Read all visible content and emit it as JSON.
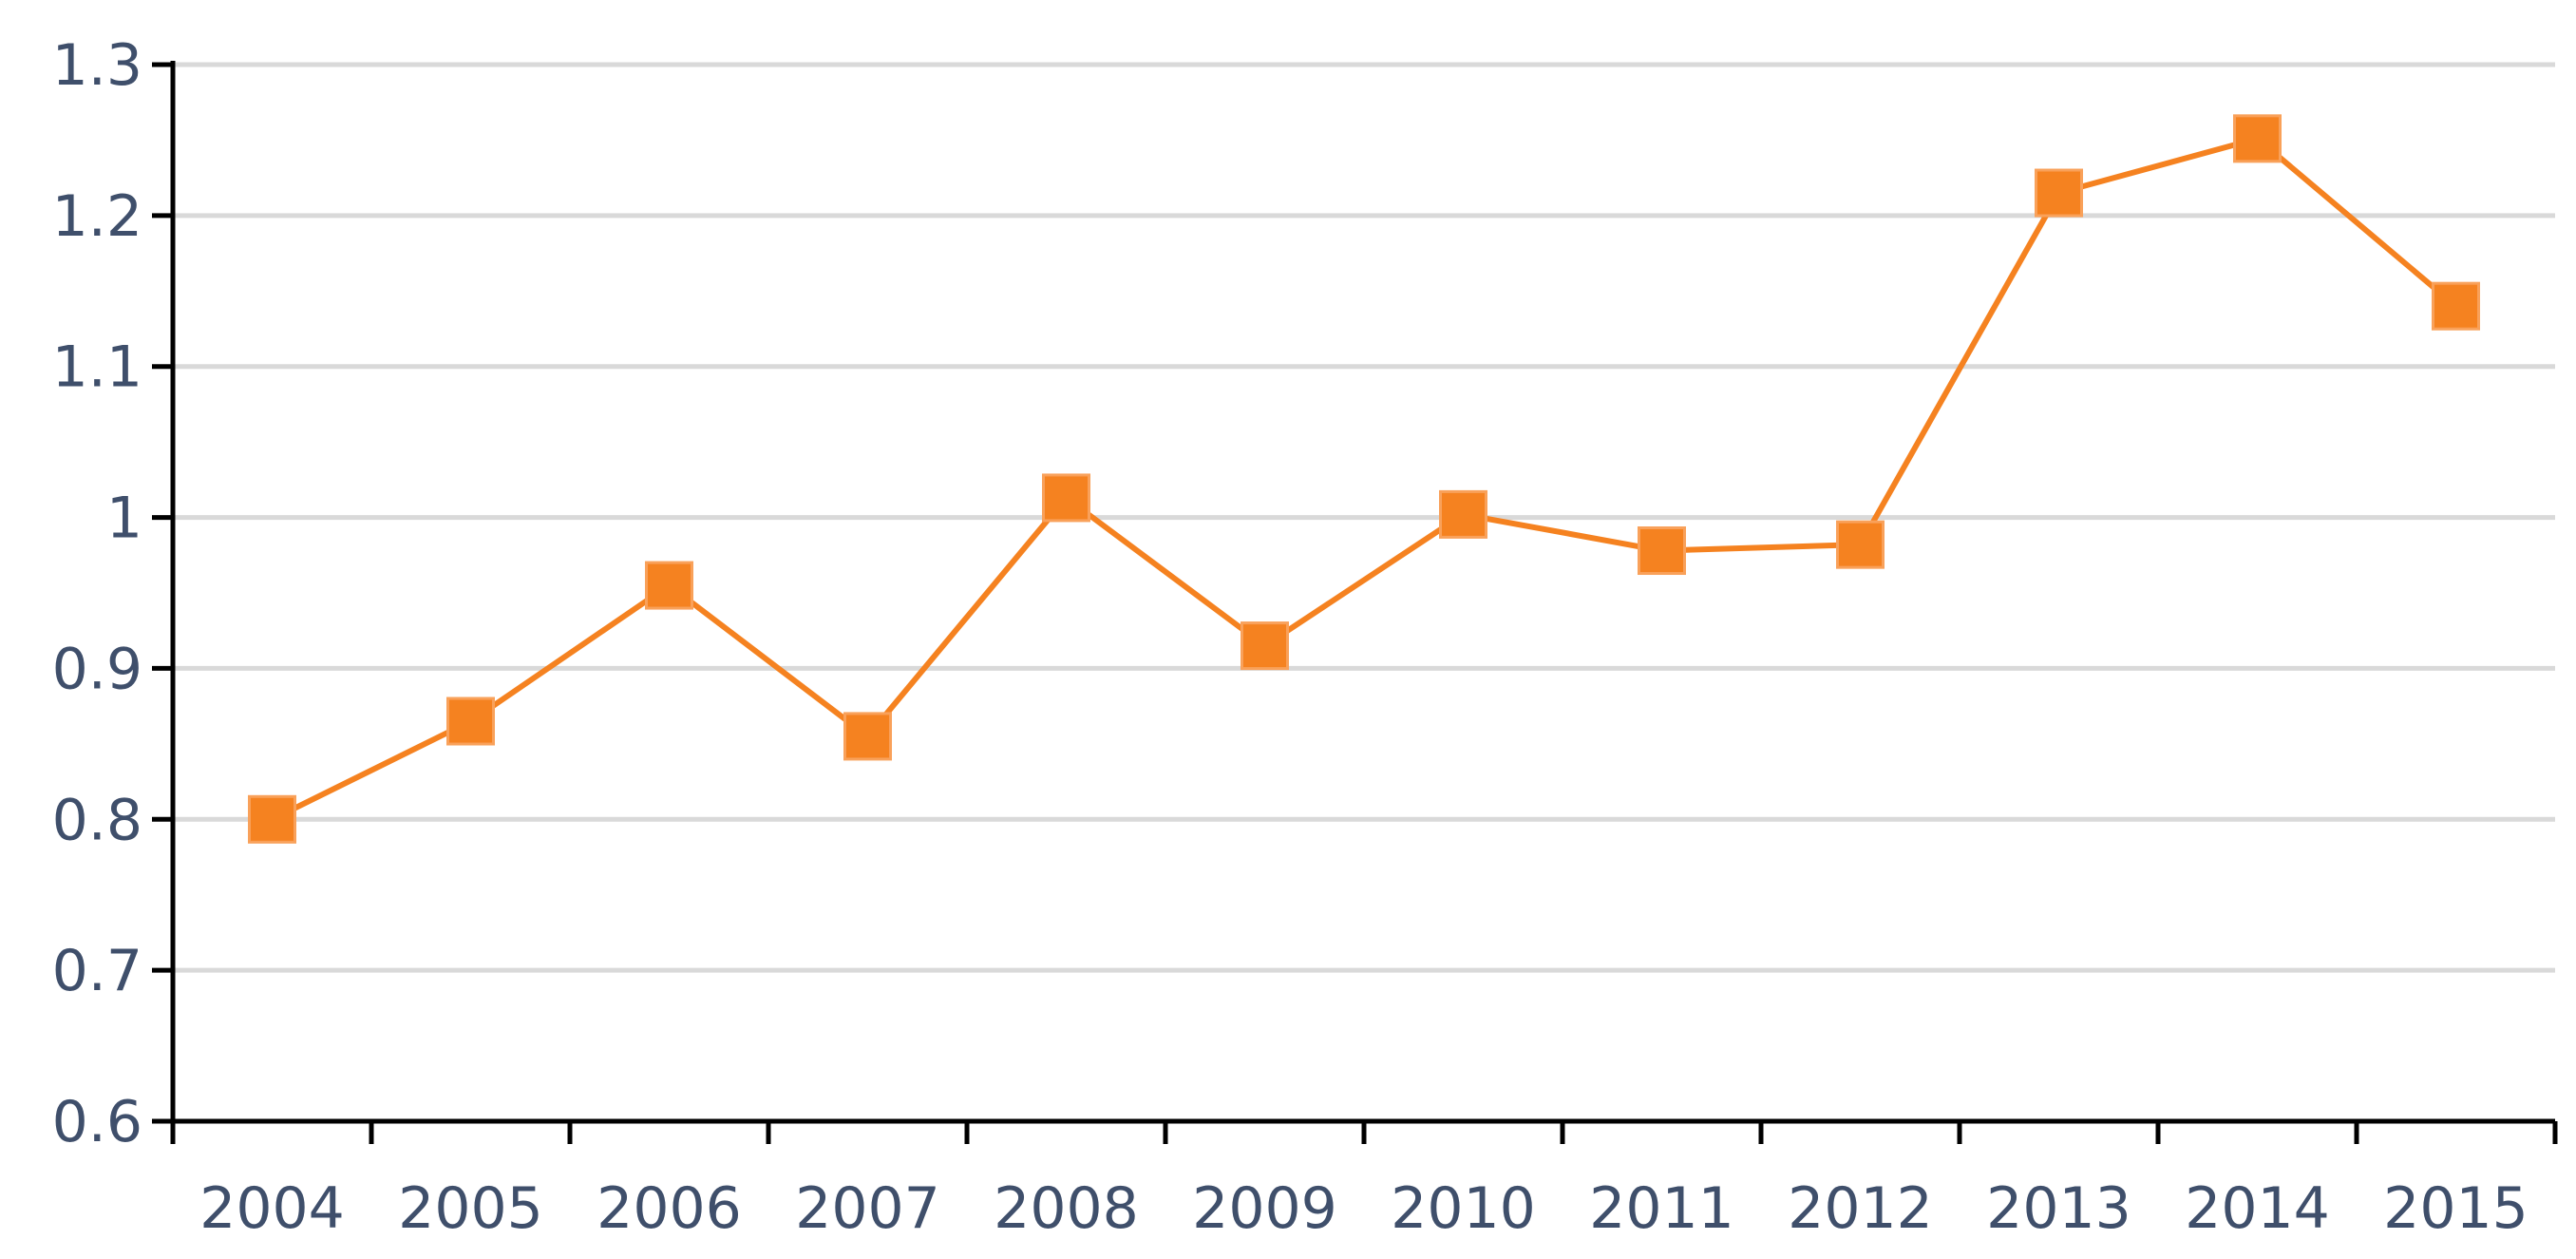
{
  "chart_data": {
    "type": "line",
    "title": "",
    "xlabel": "",
    "ylabel": "",
    "categories": [
      "2004",
      "2005",
      "2006",
      "2007",
      "2008",
      "2009",
      "2010",
      "2011",
      "2012",
      "2013",
      "2014",
      "2015"
    ],
    "series": [
      {
        "values": [
          0.8,
          0.865,
          0.955,
          0.855,
          1.013,
          0.915,
          1.002,
          0.978,
          0.982,
          1.215,
          1.251,
          1.14
        ],
        "color": "#f58220",
        "marker": "square"
      }
    ],
    "ylim": [
      0.6,
      1.3
    ],
    "yticks": [
      "0.6",
      "0.7",
      "0.8",
      "0.9",
      "1",
      "1.1",
      "1.2",
      "1.3"
    ],
    "grid": true,
    "legend": "none"
  }
}
